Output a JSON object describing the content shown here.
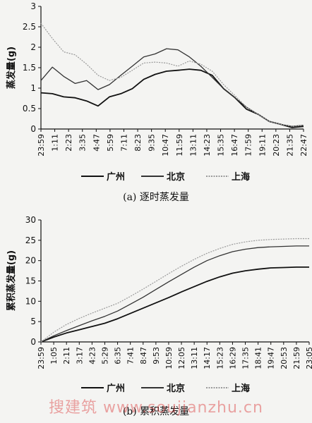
{
  "watermark": "搜建筑 www.soujianzhu.cn",
  "colors": {
    "guangzhou": "#111111",
    "beijing": "#333333",
    "shanghai": "#9a9a9a",
    "axis": "#111111"
  },
  "chart_data": [
    {
      "type": "line",
      "caption": "(a) 逐时蒸发量",
      "ylabel": "蒸发量(g)",
      "ylim": [
        0,
        3
      ],
      "yticks": [
        0,
        0.5,
        1,
        1.5,
        2,
        2.5,
        3
      ],
      "x_tick_labels": [
        "23:59",
        "1:11",
        "2:23",
        "3:35",
        "4:47",
        "5:59",
        "7:11",
        "8:23",
        "9:35",
        "10:47",
        "11:59",
        "13:11",
        "14:23",
        "15:35",
        "16:47",
        "17:59",
        "19:11",
        "20:23",
        "21:35",
        "22:47"
      ],
      "legend": [
        "广州",
        "北京",
        "上海"
      ],
      "series": [
        {
          "name": "广州",
          "values": [
            0.9,
            0.85,
            0.8,
            0.75,
            0.7,
            0.55,
            0.8,
            0.85,
            1.0,
            1.2,
            1.35,
            1.4,
            1.45,
            1.45,
            1.45,
            1.3,
            1.0,
            0.75,
            0.5,
            0.35,
            0.2,
            0.1,
            0.05,
            0.05
          ]
        },
        {
          "name": "北京",
          "values": [
            1.2,
            1.5,
            1.3,
            1.1,
            1.2,
            0.95,
            1.1,
            1.3,
            1.55,
            1.75,
            1.85,
            1.95,
            1.95,
            1.75,
            1.55,
            1.25,
            1.0,
            0.75,
            0.55,
            0.35,
            0.2,
            0.1,
            0.08,
            0.08
          ]
        },
        {
          "name": "上海",
          "values": [
            2.6,
            2.2,
            1.9,
            1.8,
            1.6,
            1.3,
            1.2,
            1.25,
            1.45,
            1.6,
            1.65,
            1.6,
            1.55,
            1.65,
            1.6,
            1.4,
            1.1,
            0.8,
            0.55,
            0.35,
            0.2,
            0.1,
            0.08,
            0.08
          ]
        }
      ]
    },
    {
      "type": "line",
      "caption": "(b) 累积蒸发量",
      "ylabel": "累积蒸发量(g)",
      "ylim": [
        0,
        30
      ],
      "yticks": [
        0,
        5,
        10,
        15,
        20,
        25,
        30
      ],
      "x_tick_labels": [
        "23:59",
        "1:05",
        "2:11",
        "3:17",
        "4:23",
        "5:29",
        "6:35",
        "7:41",
        "8:47",
        "9:53",
        "10:59",
        "12:05",
        "13:11",
        "14:17",
        "15:23",
        "16:29",
        "17:35",
        "18:41",
        "19:47",
        "20:53",
        "21:59",
        "23:05"
      ],
      "legend": [
        "广州",
        "北京",
        "上海"
      ],
      "series": [
        {
          "name": "广州",
          "values": [
            0,
            1.2,
            2.2,
            3.0,
            3.8,
            4.6,
            5.7,
            7.0,
            8.3,
            9.6,
            10.9,
            12.3,
            13.6,
            14.9,
            16.0,
            16.9,
            17.5,
            17.9,
            18.2,
            18.3,
            18.4,
            18.4
          ]
        },
        {
          "name": "北京",
          "values": [
            0,
            1.5,
            2.8,
            4.0,
            5.2,
            6.3,
            7.6,
            9.3,
            11.0,
            12.9,
            14.8,
            16.6,
            18.4,
            20.0,
            21.2,
            22.2,
            22.8,
            23.2,
            23.4,
            23.5,
            23.6,
            23.6
          ]
        },
        {
          "name": "上海",
          "values": [
            0,
            2.4,
            4.3,
            5.8,
            7.1,
            8.3,
            9.5,
            11.2,
            13.0,
            14.9,
            16.8,
            18.6,
            20.3,
            21.8,
            23.0,
            24.0,
            24.6,
            25.0,
            25.2,
            25.3,
            25.4,
            25.4
          ]
        }
      ]
    }
  ]
}
